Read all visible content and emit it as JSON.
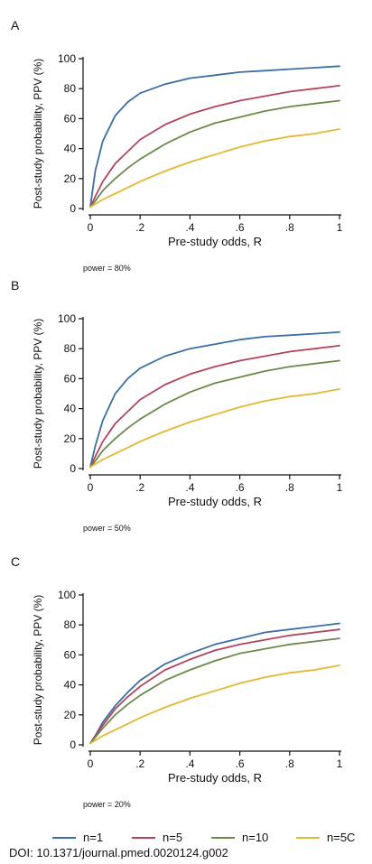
{
  "colors": {
    "n1": "#3a6ea5",
    "n5": "#b2445e",
    "n10": "#6a8a4a",
    "n50": "#e2b832",
    "axis": "#111111"
  },
  "legend": {
    "items": [
      "n=1",
      "n=5",
      "n=10",
      "n=5C"
    ]
  },
  "doi": "DOI: 10.1371/journal.pmed.0020124.g002",
  "chart_data": [
    {
      "type": "line",
      "panel": "A",
      "note": "power = 80%",
      "xlabel": "Pre-study odds, R",
      "ylabel": "Post-study probability, PPV (%)",
      "xlim": [
        0,
        1
      ],
      "ylim": [
        0,
        100
      ],
      "xticks": [
        0,
        0.2,
        0.4,
        0.6,
        0.8,
        1
      ],
      "xtick_labels": [
        "0",
        ".2",
        ".4",
        ".6",
        ".8",
        "1"
      ],
      "yticks": [
        0,
        20,
        40,
        60,
        80,
        100
      ],
      "ytick_labels": [
        "0",
        "20",
        "40",
        "60",
        "80",
        "100"
      ],
      "x": [
        0,
        0.02,
        0.05,
        0.1,
        0.15,
        0.2,
        0.3,
        0.4,
        0.5,
        0.6,
        0.7,
        0.8,
        0.9,
        1.0
      ],
      "series": [
        {
          "name": "n=1",
          "color_key": "n1",
          "values": [
            1,
            25,
            45,
            62,
            71,
            77,
            83,
            87,
            89,
            91,
            92,
            93,
            94,
            95
          ]
        },
        {
          "name": "n=5",
          "color_key": "n5",
          "values": [
            1,
            8,
            18,
            30,
            38,
            46,
            56,
            63,
            68,
            72,
            75,
            78,
            80,
            82
          ]
        },
        {
          "name": "n=10",
          "color_key": "n10",
          "values": [
            1,
            5,
            12,
            20,
            27,
            33,
            43,
            51,
            57,
            61,
            65,
            68,
            70,
            72
          ]
        },
        {
          "name": "n=5C",
          "color_key": "n50",
          "values": [
            1,
            3,
            6,
            10,
            14,
            18,
            25,
            31,
            36,
            41,
            45,
            48,
            50,
            53
          ]
        }
      ]
    },
    {
      "type": "line",
      "panel": "B",
      "note": "power = 50%",
      "xlabel": "Pre-study odds, R",
      "ylabel": "Post-study probability, PPV (%)",
      "xlim": [
        0,
        1
      ],
      "ylim": [
        0,
        100
      ],
      "xticks": [
        0,
        0.2,
        0.4,
        0.6,
        0.8,
        1
      ],
      "xtick_labels": [
        "0",
        ".2",
        ".4",
        ".6",
        ".8",
        "1"
      ],
      "yticks": [
        0,
        20,
        40,
        60,
        80,
        100
      ],
      "ytick_labels": [
        "0",
        "20",
        "40",
        "60",
        "80",
        "100"
      ],
      "x": [
        0,
        0.02,
        0.05,
        0.1,
        0.15,
        0.2,
        0.3,
        0.4,
        0.5,
        0.6,
        0.7,
        0.8,
        0.9,
        1.0
      ],
      "series": [
        {
          "name": "n=1",
          "color_key": "n1",
          "values": [
            1,
            15,
            32,
            50,
            60,
            67,
            75,
            80,
            83,
            86,
            88,
            89,
            90,
            91
          ]
        },
        {
          "name": "n=5",
          "color_key": "n5",
          "values": [
            1,
            8,
            18,
            30,
            38,
            46,
            56,
            63,
            68,
            72,
            75,
            78,
            80,
            82
          ]
        },
        {
          "name": "n=10",
          "color_key": "n10",
          "values": [
            1,
            5,
            12,
            20,
            27,
            33,
            43,
            51,
            57,
            61,
            65,
            68,
            70,
            72
          ]
        },
        {
          "name": "n=5C",
          "color_key": "n50",
          "values": [
            1,
            3,
            6,
            10,
            14,
            18,
            25,
            31,
            36,
            41,
            45,
            48,
            50,
            53
          ]
        }
      ]
    },
    {
      "type": "line",
      "panel": "C",
      "note": "power = 20%",
      "xlabel": "Pre-study odds, R",
      "ylabel": "Post-study probability, PPV (%)",
      "xlim": [
        0,
        1
      ],
      "ylim": [
        0,
        100
      ],
      "xticks": [
        0,
        0.2,
        0.4,
        0.6,
        0.8,
        1
      ],
      "xtick_labels": [
        "0",
        ".2",
        ".4",
        ".6",
        ".8",
        "1"
      ],
      "yticks": [
        0,
        20,
        40,
        60,
        80,
        100
      ],
      "ytick_labels": [
        "0",
        "20",
        "40",
        "60",
        "80",
        "100"
      ],
      "x": [
        0,
        0.02,
        0.05,
        0.1,
        0.15,
        0.2,
        0.3,
        0.4,
        0.5,
        0.6,
        0.7,
        0.8,
        0.9,
        1.0
      ],
      "series": [
        {
          "name": "n=1",
          "color_key": "n1",
          "values": [
            1,
            6,
            15,
            26,
            35,
            43,
            54,
            61,
            67,
            71,
            75,
            77,
            79,
            81
          ]
        },
        {
          "name": "n=5",
          "color_key": "n5",
          "values": [
            1,
            6,
            13,
            24,
            32,
            39,
            50,
            57,
            63,
            67,
            70,
            73,
            75,
            77
          ]
        },
        {
          "name": "n=10",
          "color_key": "n10",
          "values": [
            1,
            5,
            11,
            20,
            27,
            33,
            43,
            50,
            56,
            61,
            64,
            67,
            69,
            71
          ]
        },
        {
          "name": "n=5C",
          "color_key": "n50",
          "values": [
            1,
            3,
            6,
            10,
            14,
            18,
            25,
            31,
            36,
            41,
            45,
            48,
            50,
            53
          ]
        }
      ]
    }
  ]
}
